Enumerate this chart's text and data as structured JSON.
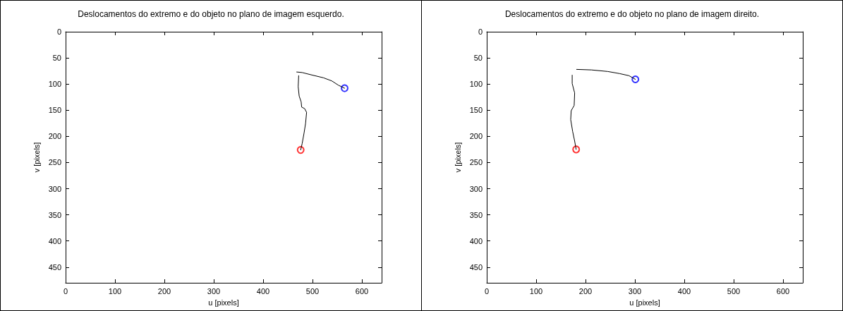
{
  "chart_data": [
    {
      "type": "line",
      "title": "Deslocamentos do extremo e do objeto no plano de imagem esquerdo.",
      "xlabel": "u [pixels]",
      "ylabel": "v [pixels]",
      "xlim": [
        0,
        640
      ],
      "ylim": [
        480,
        0
      ],
      "xticks": [
        0,
        100,
        200,
        300,
        400,
        500,
        600
      ],
      "yticks": [
        0,
        50,
        100,
        150,
        200,
        250,
        300,
        350,
        400,
        450
      ],
      "grid": false,
      "series": [
        {
          "color": "#000000",
          "marker": "none",
          "x": [
            468,
            479,
            500,
            522,
            539,
            552,
            565
          ],
          "values": [
            77,
            78,
            83,
            88,
            94,
            102,
            108
          ]
        },
        {
          "color": "#000000",
          "marker": "none",
          "x": [
            472,
            471,
            473,
            477,
            478,
            484,
            488,
            486,
            483,
            479,
            476
          ],
          "values": [
            84,
            105,
            123,
            134,
            144,
            147,
            154,
            175,
            193,
            214,
            226
          ]
        },
        {
          "type": "scatter",
          "color": "#0000ff",
          "marker": "circle",
          "x": [
            565
          ],
          "values": [
            108
          ]
        },
        {
          "type": "scatter",
          "color": "#ff0000",
          "marker": "circle",
          "x": [
            476
          ],
          "values": [
            226
          ]
        }
      ]
    },
    {
      "type": "line",
      "title": "Deslocamentos do extremo e do objeto no plano de imagem direito.",
      "xlabel": "u [pixels]",
      "ylabel": "v [pixels]",
      "xlim": [
        0,
        640
      ],
      "ylim": [
        480,
        0
      ],
      "xticks": [
        0,
        100,
        200,
        300,
        400,
        500,
        600
      ],
      "yticks": [
        0,
        50,
        100,
        150,
        200,
        250,
        300,
        350,
        400,
        450
      ],
      "grid": false,
      "series": [
        {
          "color": "#000000",
          "marker": "none",
          "x": [
            182,
            212,
            245,
            269,
            288,
            301
          ],
          "values": [
            72,
            73,
            76,
            80,
            84,
            91
          ]
        },
        {
          "color": "#000000",
          "marker": "none",
          "x": [
            173,
            173,
            178,
            177,
            171,
            170,
            174,
            178,
            181
          ],
          "values": [
            83,
            99,
            117,
            141,
            151,
            168,
            191,
            209,
            225
          ]
        },
        {
          "type": "scatter",
          "color": "#0000ff",
          "marker": "circle",
          "x": [
            301
          ],
          "values": [
            91
          ]
        },
        {
          "type": "scatter",
          "color": "#ff0000",
          "marker": "circle",
          "x": [
            181
          ],
          "values": [
            225
          ]
        }
      ]
    }
  ]
}
